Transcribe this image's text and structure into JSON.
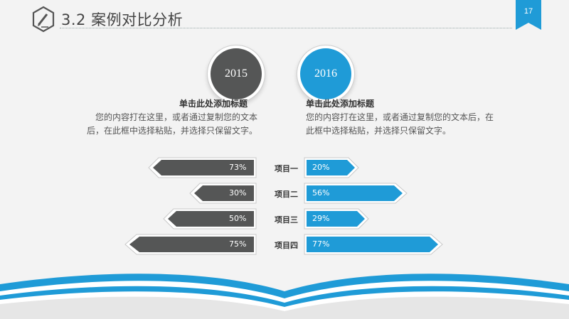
{
  "header": {
    "title": "3.2 案例对比分析",
    "page_number": "17",
    "icon": "pencil-hexagon-icon"
  },
  "columns": {
    "left": {
      "year": "2015",
      "title": "单击此处添加标题",
      "text_line1": "您的内容打在这里，或者通过复制您的文本",
      "text_line2": "后，在此框中选择粘贴，并选择只保留文字。"
    },
    "right": {
      "year": "2016",
      "title": "单击此处添加标题",
      "text_line1": "您的内容打在这里，或者通过复制您的文本后，在",
      "text_line2": "此框中选择粘贴，并选择只保留文字。"
    }
  },
  "rows": [
    {
      "label": "项目一",
      "left_value": "73%",
      "right_value": "20%"
    },
    {
      "label": "项目二",
      "left_value": "30%",
      "right_value": "56%"
    },
    {
      "label": "项目三",
      "left_value": "50%",
      "right_value": "29%"
    },
    {
      "label": "项目四",
      "left_value": "75%",
      "right_value": "77%"
    }
  ],
  "colors": {
    "dark": "#555656",
    "blue": "#1f9bd7",
    "background": "#f3f3f3"
  }
}
